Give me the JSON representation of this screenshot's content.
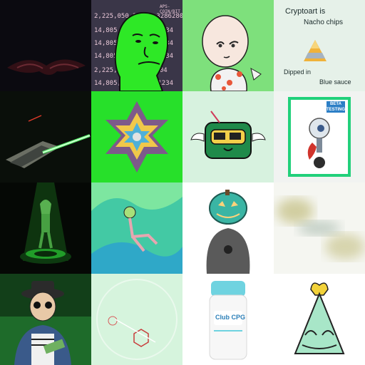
{
  "tiles": [
    {
      "name": "dark-bat-creature",
      "bg": "#0b0a10"
    },
    {
      "name": "wojak-ticker",
      "ticker_rows": [
        {
          "a": "2,225,050,221",
          "b": "0.32862804"
        },
        {
          "a": "14,805,",
          "b": "81234"
        },
        {
          "a": "14,805,",
          "b": "81234"
        },
        {
          "a": "14,805,",
          "b": "81234"
        },
        {
          "a": "2,225,050,",
          "b": "562804"
        },
        {
          "a": "14,805,",
          "b": "31234"
        }
      ],
      "header": "APS-COIN/BIT"
    },
    {
      "name": "cartoon-bald-character",
      "bg": "#7ee07c"
    },
    {
      "name": "cryptoart-nacho",
      "bg": "#e6f1e9",
      "line1": "Cryptoart is",
      "line2": "Nacho chips",
      "line3": "Dipped in",
      "line4": "Blue sauce"
    },
    {
      "name": "spaceship-laser",
      "bg": "#0a0f0a"
    },
    {
      "name": "kaleidoscope-star",
      "bg": "#27e02a"
    },
    {
      "name": "flying-boombox",
      "bg": "#d7f2df"
    },
    {
      "name": "beta-card",
      "bg": "#f1f3f1",
      "badge_line1": "BETA",
      "badge_line2": "TESTING"
    },
    {
      "name": "glowing-alien-statue",
      "bg": "#050805"
    },
    {
      "name": "abstract-lounging-figure",
      "bg": "#43c9a4"
    },
    {
      "name": "pumpkin-head-figure",
      "bg": "#ffffff"
    },
    {
      "name": "blurry-abstract",
      "bg": "#f5f6f1"
    },
    {
      "name": "old-man-money",
      "bg": "#1e6b2a"
    },
    {
      "name": "faint-geometric",
      "bg": "#d6f4dd"
    },
    {
      "name": "club-cpg-deodorant",
      "bg": "#ffffff",
      "brand": "Club CPG"
    },
    {
      "name": "crowned-cone-character",
      "bg": "#ffffff"
    }
  ]
}
